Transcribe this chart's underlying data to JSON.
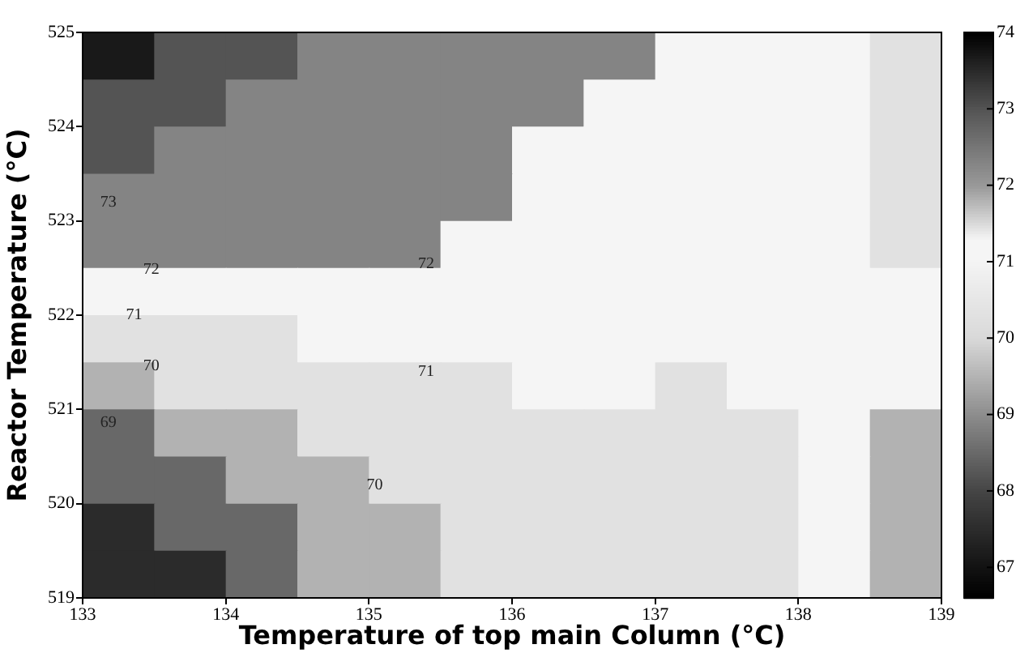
{
  "chart_data": {
    "type": "heatmap",
    "xlabel": "Temperature of top main Column (°C)",
    "ylabel": "Reactor Temperature (°C)",
    "x": [
      133.25,
      133.75,
      134.25,
      134.75,
      135.25,
      135.75,
      136.25,
      136.75,
      137.25,
      137.75,
      138.25,
      138.75
    ],
    "y": [
      524.75,
      524.25,
      523.75,
      523.25,
      522.75,
      522.25,
      521.75,
      521.25,
      520.75,
      520.25,
      519.75,
      519.25
    ],
    "cells": [
      [
        73.7,
        73,
        73,
        72.3,
        72.3,
        72.3,
        72.3,
        72.3,
        71.2,
        71.2,
        71.2,
        70.3
      ],
      [
        73,
        73,
        72.3,
        72.3,
        72.3,
        72.3,
        72.3,
        71.2,
        71.2,
        71.2,
        71.2,
        70.3
      ],
      [
        73,
        72.3,
        72.3,
        72.3,
        72.3,
        72.3,
        71.2,
        71.2,
        71.2,
        71.2,
        71.2,
        70.3
      ],
      [
        72.3,
        72.3,
        72.3,
        72.3,
        72.3,
        72.3,
        71.2,
        71.2,
        71.2,
        71.2,
        71.2,
        70.3
      ],
      [
        72.3,
        72.3,
        72.3,
        72.3,
        72.3,
        71.2,
        71.2,
        71.2,
        71.2,
        71.2,
        71.2,
        70.3
      ],
      [
        71.2,
        71.2,
        71.2,
        71.2,
        71.2,
        71.2,
        71.2,
        71.2,
        71.2,
        71.2,
        71.2,
        71.2
      ],
      [
        70.3,
        70.3,
        70.3,
        71.2,
        71.2,
        71.2,
        71.2,
        71.2,
        71.2,
        71.2,
        71.2,
        71.2
      ],
      [
        69.5,
        70.3,
        70.3,
        70.3,
        70.3,
        70.3,
        71.2,
        71.2,
        70.3,
        71.2,
        71.2,
        71.2
      ],
      [
        68.5,
        69.5,
        69.5,
        70.3,
        70.3,
        70.3,
        70.3,
        70.3,
        70.3,
        70.3,
        71.2,
        69.5
      ],
      [
        68.5,
        68.5,
        69.5,
        69.5,
        70.3,
        70.3,
        70.3,
        70.3,
        70.3,
        70.3,
        71.2,
        69.5
      ],
      [
        67.5,
        68.5,
        68.5,
        69.5,
        69.5,
        70.3,
        70.3,
        70.3,
        70.3,
        70.3,
        71.2,
        69.5
      ],
      [
        67.5,
        67.5,
        68.5,
        69.5,
        69.5,
        70.3,
        70.3,
        70.3,
        70.3,
        70.3,
        71.2,
        69.5
      ]
    ],
    "xlim": [
      133,
      139
    ],
    "ylim": [
      519,
      525
    ],
    "xticks": [
      133,
      134,
      135,
      136,
      137,
      138,
      139
    ],
    "yticks": [
      519,
      520,
      521,
      522,
      523,
      524,
      525
    ],
    "clim": [
      66.6,
      74
    ],
    "cticks": [
      67,
      68,
      69,
      70,
      71,
      72,
      73,
      74
    ],
    "grid": false,
    "annotations": [
      "73",
      "72",
      "72",
      "71",
      "71",
      "70",
      "70",
      "69"
    ]
  }
}
